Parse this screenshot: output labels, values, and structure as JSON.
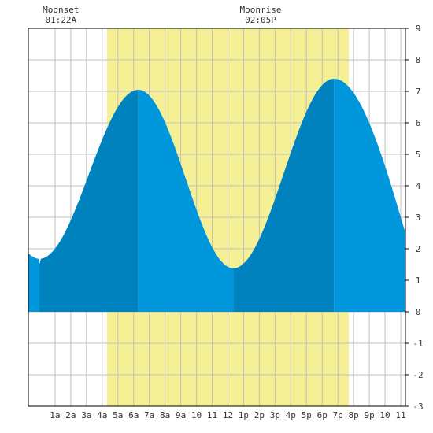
{
  "chart_data": {
    "type": "area",
    "title": "",
    "xlabel": "",
    "ylabel": "",
    "x_range_hours": [
      -0.7,
      23.3
    ],
    "ylim": [
      -3,
      9
    ],
    "y_ticks": [
      "-3",
      "-2",
      "-1",
      "0",
      "1",
      "2",
      "3",
      "4",
      "5",
      "6",
      "7",
      "8",
      "9"
    ],
    "x_ticks": [
      {
        "h": 1,
        "label": "1a"
      },
      {
        "h": 2,
        "label": "2a"
      },
      {
        "h": 3,
        "label": "3a"
      },
      {
        "h": 4,
        "label": "4a"
      },
      {
        "h": 5,
        "label": "5a"
      },
      {
        "h": 6,
        "label": "6a"
      },
      {
        "h": 7,
        "label": "7a"
      },
      {
        "h": 8,
        "label": "8a"
      },
      {
        "h": 9,
        "label": "9a"
      },
      {
        "h": 10,
        "label": "10"
      },
      {
        "h": 11,
        "label": "11"
      },
      {
        "h": 12,
        "label": "12"
      },
      {
        "h": 13,
        "label": "1p"
      },
      {
        "h": 14,
        "label": "2p"
      },
      {
        "h": 15,
        "label": "3p"
      },
      {
        "h": 16,
        "label": "4p"
      },
      {
        "h": 17,
        "label": "5p"
      },
      {
        "h": 18,
        "label": "6p"
      },
      {
        "h": 19,
        "label": "7p"
      },
      {
        "h": 20,
        "label": "8p"
      },
      {
        "h": 21,
        "label": "9p"
      },
      {
        "h": 22,
        "label": "10"
      },
      {
        "h": 23,
        "label": "11"
      }
    ],
    "daylight": [
      4.3,
      19.7
    ],
    "extremes": [
      {
        "time": 0.0,
        "height": 1.68
      },
      {
        "time": 6.3,
        "height": 7.05
      },
      {
        "time": 12.35,
        "height": 1.38
      },
      {
        "time": 18.75,
        "height": 7.4
      }
    ],
    "series_end": {
      "time": 23.3,
      "height": 2.5
    },
    "series_start": {
      "time": -0.7,
      "height": 1.85
    },
    "moon_events": [
      {
        "label": "Moonset",
        "time": "01:22A",
        "h": 1.37
      },
      {
        "label": "Moonrise",
        "time": "02:05P",
        "h": 14.08
      }
    ],
    "colors": {
      "tide_light": "#0096dc",
      "tide_dark": "#0082be",
      "daylight": "#f5f096",
      "grid": "#c0c0c0",
      "frame": "#000000"
    },
    "grid": true
  }
}
